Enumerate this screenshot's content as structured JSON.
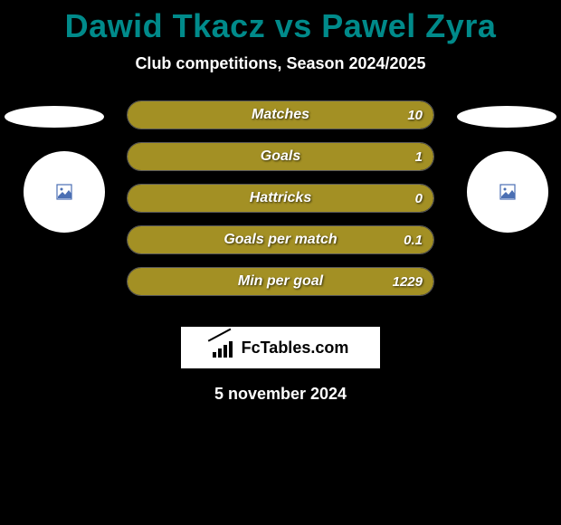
{
  "title": "Dawid Tkacz vs Pawel Zyra",
  "subtitle": "Club competitions, Season 2024/2025",
  "date": "5 november 2024",
  "logo_text": "FcTables.com",
  "colors": {
    "background": "#000000",
    "title_color": "#008a8a",
    "text_color": "#ffffff",
    "bar_fill": "#a39024",
    "bar_border": "rgba(255,255,255,0.35)",
    "logo_bg": "#ffffff",
    "logo_fg": "#000000",
    "avatar_bg": "#ffffff",
    "avatar_icon": "#4b6fb3"
  },
  "stats": [
    {
      "label": "Matches",
      "left_value": "",
      "right_value": "10",
      "left_fill_pct": 0,
      "right_fill_pct": 100
    },
    {
      "label": "Goals",
      "left_value": "",
      "right_value": "1",
      "left_fill_pct": 0,
      "right_fill_pct": 100
    },
    {
      "label": "Hattricks",
      "left_value": "",
      "right_value": "0",
      "left_fill_pct": 0,
      "right_fill_pct": 100
    },
    {
      "label": "Goals per match",
      "left_value": "",
      "right_value": "0.1",
      "left_fill_pct": 0,
      "right_fill_pct": 100
    },
    {
      "label": "Min per goal",
      "left_value": "",
      "right_value": "1229",
      "left_fill_pct": 0,
      "right_fill_pct": 100
    }
  ]
}
